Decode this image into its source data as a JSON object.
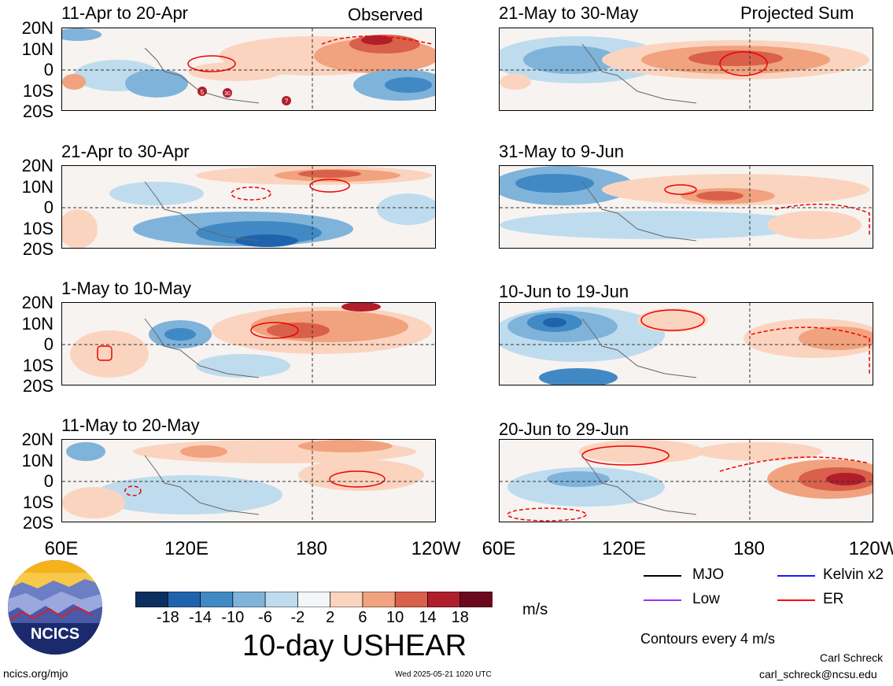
{
  "header": {
    "left_tag": "Observed",
    "right_tag": "Projected Sum"
  },
  "panels_left": [
    {
      "title": "11-Apr to 20-Apr"
    },
    {
      "title": "21-Apr to 30-Apr"
    },
    {
      "title": "1-May to 10-May"
    },
    {
      "title": "11-May to 20-May"
    }
  ],
  "panels_right": [
    {
      "title": "21-May to 30-May"
    },
    {
      "title": "31-May to 9-Jun"
    },
    {
      "title": "10-Jun to 19-Jun"
    },
    {
      "title": "20-Jun to 29-Jun"
    }
  ],
  "axes": {
    "lat_labels": [
      "20N",
      "10N",
      "0",
      "10S",
      "20S"
    ],
    "lon_labels": [
      "60E",
      "120E",
      "180",
      "120W"
    ]
  },
  "markers": [
    "5",
    "30",
    "?"
  ],
  "colorbar": {
    "ticks": [
      "-18",
      "-14",
      "-10",
      "-6",
      "-2",
      "2",
      "6",
      "10",
      "14",
      "18"
    ],
    "colors": [
      "#0b2f5e",
      "#1f63ad",
      "#4089c5",
      "#7fb3da",
      "#bfdcee",
      "#f4f6f8",
      "#fbd4bf",
      "#f1a27e",
      "#d9604a",
      "#b01e2d",
      "#6b0a1f"
    ],
    "units": "m/s"
  },
  "main_title": "10-day USHEAR",
  "legend": {
    "items": [
      {
        "label": "MJO",
        "color": "#000000"
      },
      {
        "label": "Kelvin x2",
        "color": "#1a1aff"
      },
      {
        "label": "Low",
        "color": "#9b30ff"
      },
      {
        "label": "ER",
        "color": "#ff0000"
      }
    ],
    "note": "Contours every 4 m/s"
  },
  "logo": {
    "text": "NCICS"
  },
  "footer": {
    "url": "ncics.org/mjo",
    "timestamp": "Wed 2025-05-21 1020 UTC",
    "author": "Carl Schreck",
    "email": "carl_schreck@ncsu.edu"
  },
  "chart_data": {
    "type": "heatmap",
    "title": "10-day USHEAR",
    "units": "m/s",
    "x_range": [
      "60E",
      "120W"
    ],
    "y_range": [
      "20S",
      "20N"
    ],
    "color_levels": [
      -18,
      -14,
      -10,
      -6,
      -2,
      2,
      6,
      10,
      14,
      18
    ],
    "contour_interval": 4,
    "panels": [
      "11-Apr to 20-Apr",
      "21-Apr to 30-Apr",
      "1-May to 10-May",
      "11-May to 20-May",
      "21-May to 30-May",
      "31-May to 9-Jun",
      "10-Jun to 19-Jun",
      "20-Jun to 29-Jun"
    ]
  }
}
